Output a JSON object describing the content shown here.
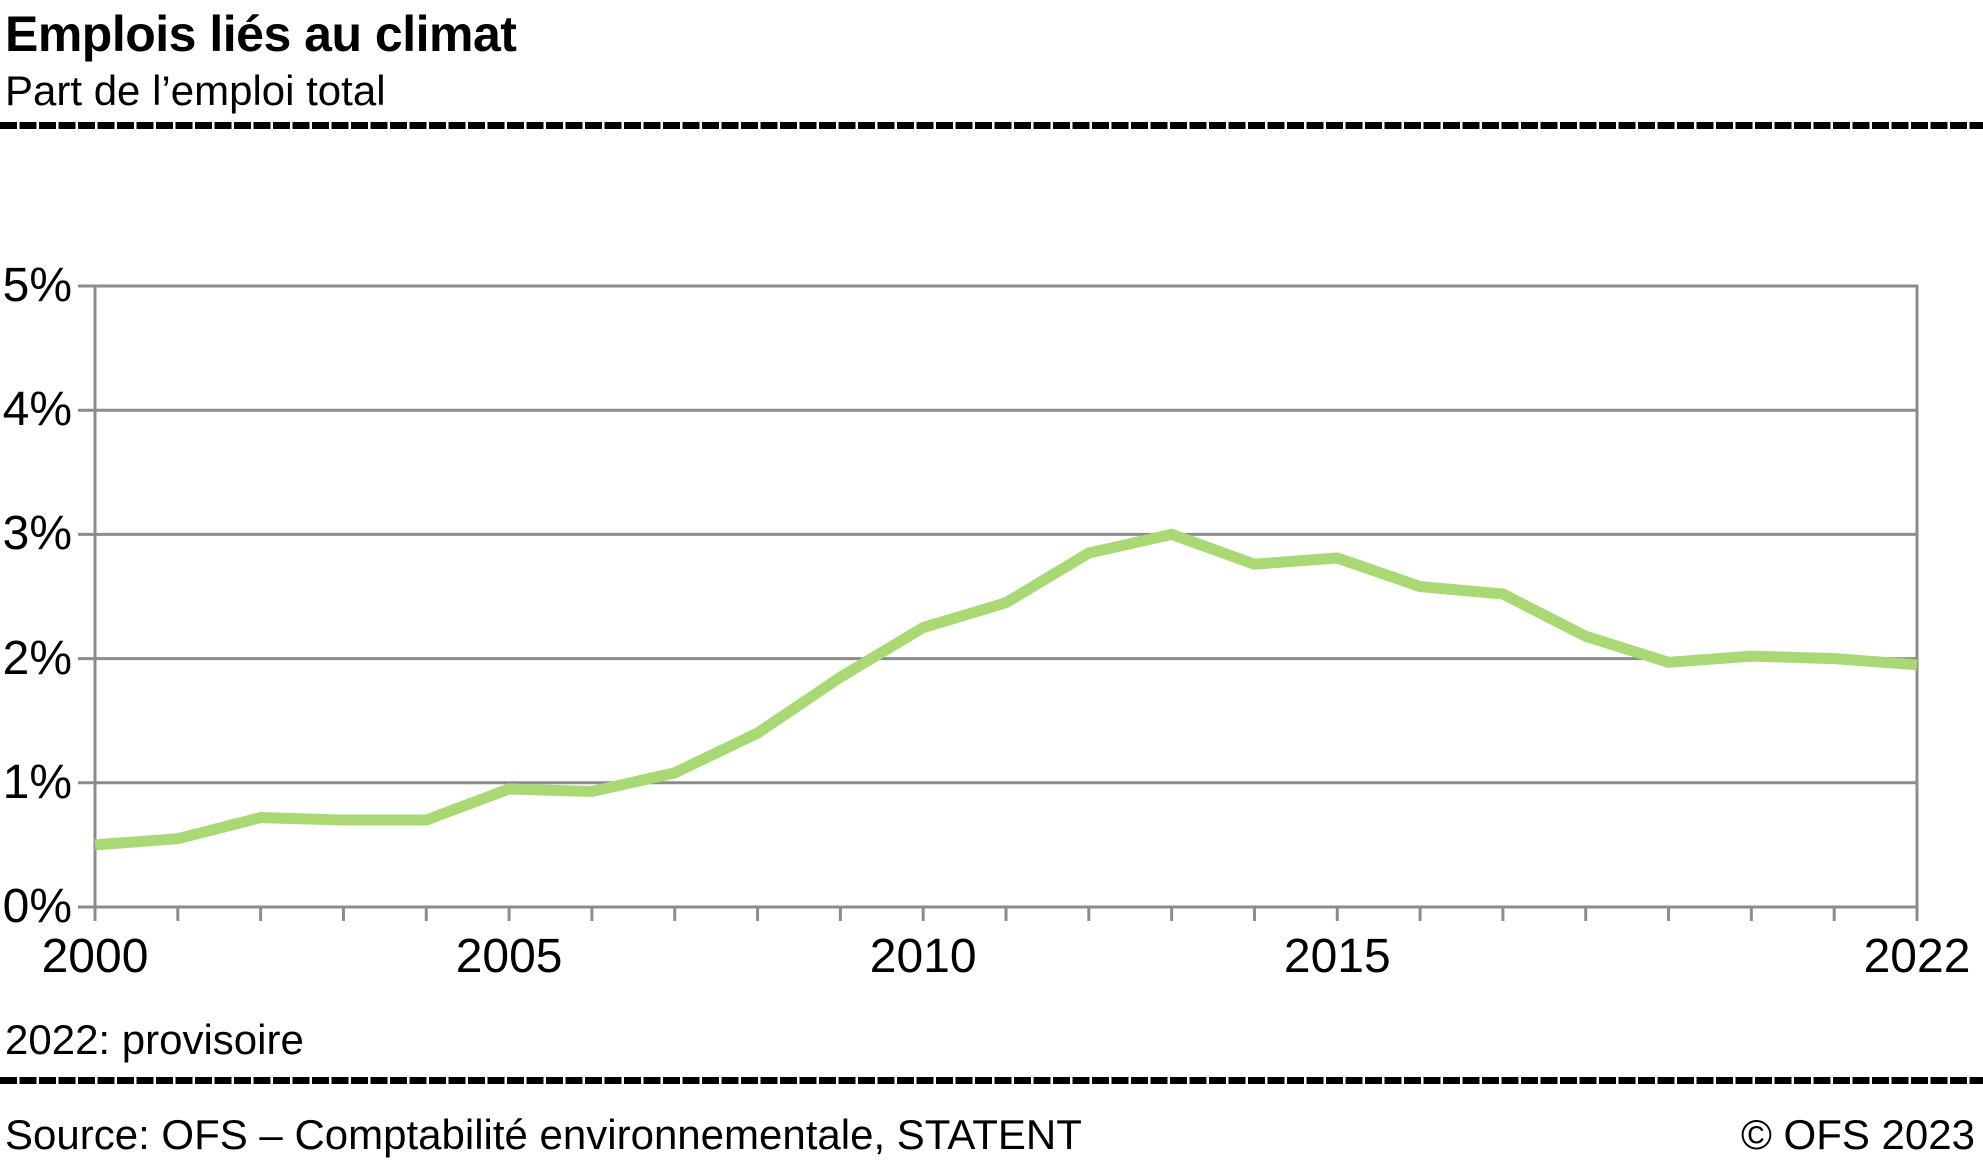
{
  "header": {
    "title": "Emplois liés au climat",
    "subtitle": "Part de l’emploi total"
  },
  "footnote": "2022: provisoire",
  "footer": {
    "source": "Source: OFS – Comptabilité environnementale, STATENT",
    "copyright": "© OFS 2023"
  },
  "colors": {
    "line": "#A9D874",
    "grid": "#8C8C8C",
    "text": "#000000",
    "rule": "#000000"
  },
  "chart_data": {
    "type": "line",
    "title": "Emplois liés au climat",
    "subtitle": "Part de l’emploi total",
    "x": [
      2000,
      2001,
      2002,
      2003,
      2004,
      2005,
      2006,
      2007,
      2008,
      2009,
      2010,
      2011,
      2012,
      2013,
      2014,
      2015,
      2016,
      2017,
      2018,
      2019,
      2020,
      2021,
      2022
    ],
    "series": [
      {
        "name": "Part de l’emploi total",
        "values": [
          0.5,
          0.55,
          0.72,
          0.7,
          0.7,
          0.95,
          0.93,
          1.08,
          1.4,
          1.85,
          2.25,
          2.45,
          2.85,
          3.0,
          2.76,
          2.81,
          2.58,
          2.52,
          2.18,
          1.97,
          2.02,
          2.0,
          1.95
        ]
      }
    ],
    "xlim": [
      2000,
      2022
    ],
    "ylim": [
      0,
      5
    ],
    "y_tick_labels": [
      "0%",
      "1%",
      "2%",
      "3%",
      "4%",
      "5%"
    ],
    "x_label_years": [
      2000,
      2005,
      2010,
      2015,
      2022
    ],
    "grid": "horizontal",
    "legend_position": "none",
    "xlabel": "",
    "ylabel": ""
  }
}
